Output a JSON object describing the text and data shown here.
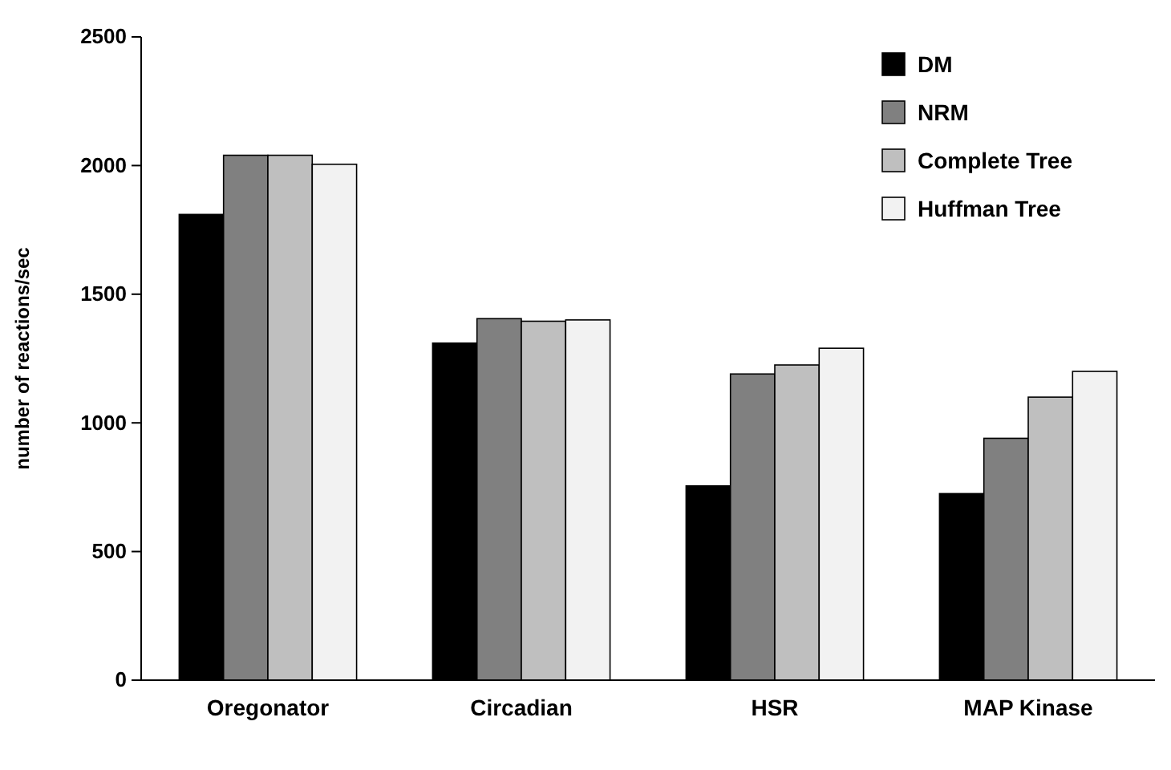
{
  "chart_data": {
    "type": "bar",
    "ylabel": "number of reactions/sec",
    "categories": [
      "Oregonator",
      "Circadian",
      "HSR",
      "MAP Kinase"
    ],
    "series": [
      {
        "name": "DM",
        "color": "#000000",
        "values": [
          1810,
          1310,
          755,
          725
        ]
      },
      {
        "name": "NRM",
        "color": "#808080",
        "values": [
          2040,
          1405,
          1190,
          940
        ]
      },
      {
        "name": "Complete Tree",
        "color": "#bfbfbf",
        "values": [
          2040,
          1395,
          1225,
          1100
        ]
      },
      {
        "name": "Huffman Tree",
        "color": "#f2f2f2",
        "values": [
          2005,
          1400,
          1290,
          1200
        ]
      }
    ],
    "ylim": [
      0,
      2500
    ],
    "yticks": [
      0,
      500,
      1000,
      1500,
      2000,
      2500
    ],
    "grid": false,
    "legend": "top right"
  }
}
